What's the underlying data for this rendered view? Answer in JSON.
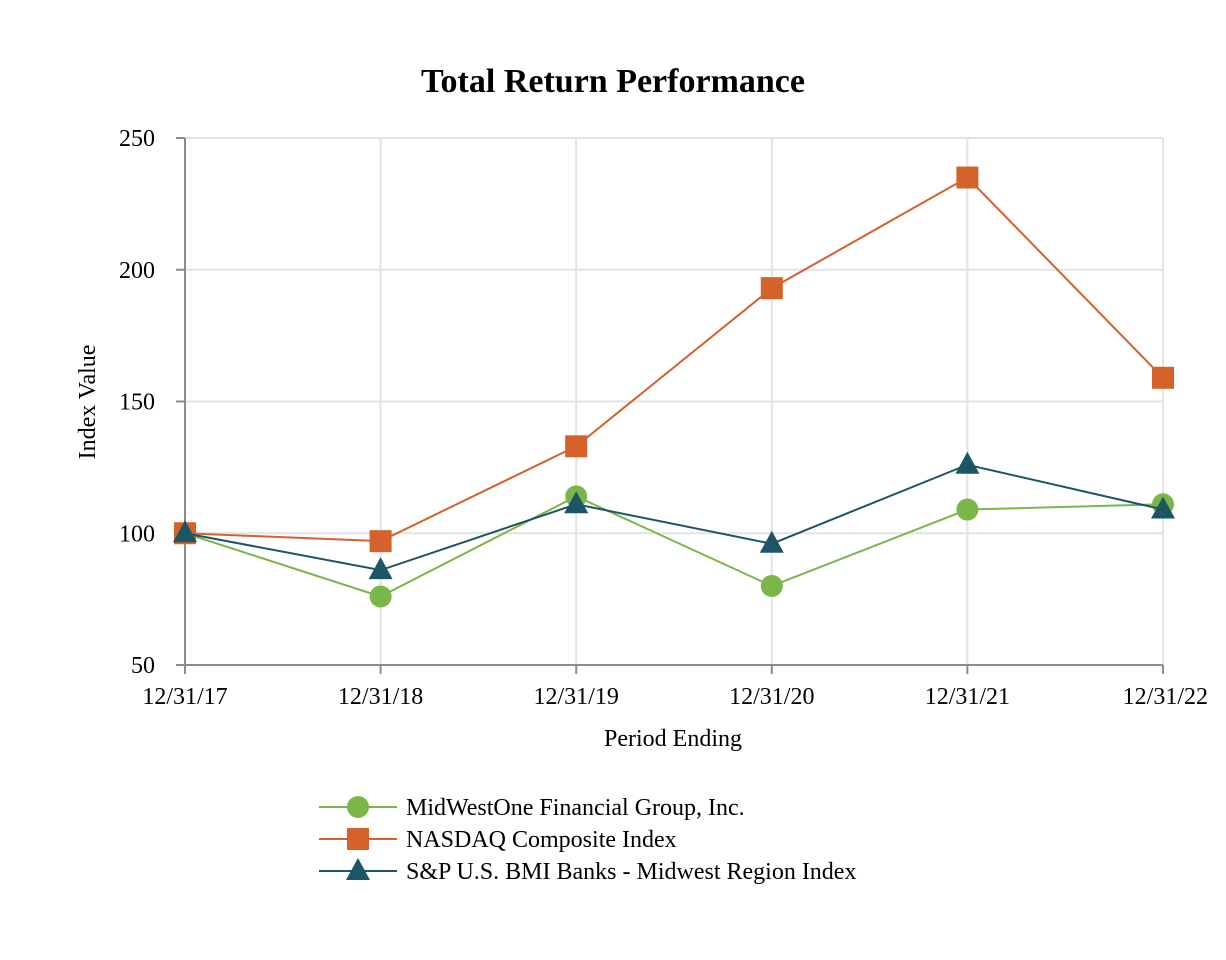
{
  "chart_data": {
    "type": "line",
    "title": "Total Return Performance",
    "xlabel": "Period Ending",
    "ylabel": "Index Value",
    "categories": [
      "12/31/17",
      "12/31/18",
      "12/31/19",
      "12/31/20",
      "12/31/21",
      "12/31/22"
    ],
    "ylim": [
      50,
      250
    ],
    "yticks": [
      50,
      100,
      150,
      200,
      250
    ],
    "grid": true,
    "legend_position": "bottom",
    "series": [
      {
        "name": "MidWestOne Financial Group, Inc.",
        "color": "#7ab648",
        "marker": "circle",
        "values": [
          100,
          76,
          114,
          80,
          109,
          111
        ]
      },
      {
        "name": "NASDAQ Composite Index",
        "color": "#d4622a",
        "marker": "square",
        "values": [
          100,
          97,
          133,
          193,
          235,
          159
        ]
      },
      {
        "name": "S&P U.S. BMI Banks - Midwest Region Index",
        "color": "#1b5566",
        "marker": "triangle",
        "values": [
          100,
          86,
          111,
          96,
          126,
          109
        ]
      }
    ]
  }
}
